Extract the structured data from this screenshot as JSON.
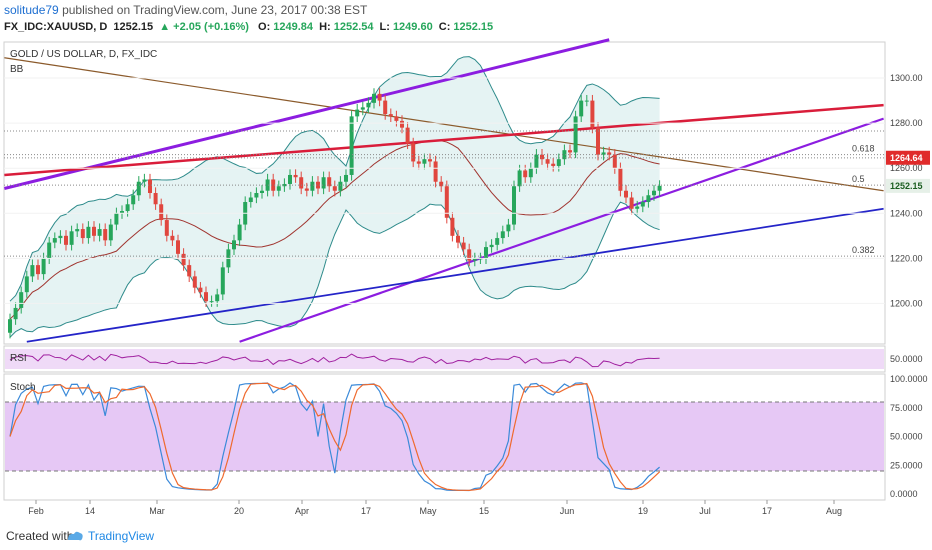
{
  "header": {
    "user": "solitude79",
    "published": "published on TradingView.com, June 23, 2017 00:38 EST",
    "symbol": "FX_IDC:XAUUSD, D",
    "last": "1252.15",
    "change": "+2.05 (+0.16%)",
    "open_label": "O:",
    "open": "1249.84",
    "high_label": "H:",
    "high": "1252.54",
    "low_label": "L:",
    "low": "1249.60",
    "close_label": "C:",
    "close": "1252.15"
  },
  "chart_title": "GOLD / US DOLLAR, D, FX_IDC",
  "indicators": {
    "bb": "BB",
    "rsi": "RSI",
    "stoch": "Stoch"
  },
  "fib": {
    "f618": "0.618",
    "f5": "0.5",
    "f382": "0.382"
  },
  "price_axis": [
    "1300.00",
    "1280.00",
    "1260.00",
    "1240.00",
    "1220.00",
    "1200.00"
  ],
  "price_ticks": [
    1300,
    1280,
    1260,
    1240,
    1220,
    1200
  ],
  "markers": {
    "red_pill": "1264.64",
    "last_pill": "1252.15",
    "red_pill_value": 1264.64,
    "last_pill_value": 1252.15
  },
  "rsi_axis": "50.0000",
  "stoch_axis": [
    "100.0000",
    "75.0000",
    "50.0000",
    "25.0000",
    "0.0000"
  ],
  "time_axis": [
    "Feb",
    "14",
    "Mar",
    "20",
    "Apr",
    "17",
    "May",
    "15",
    "Jun",
    "19",
    "Jul",
    "17",
    "Aug"
  ],
  "footer": {
    "created": "Created with",
    "brand": "TradingView"
  },
  "colors": {
    "up": "#26a65b",
    "down": "#e0463e",
    "purple": "#8c1de0",
    "red_line": "#d91d3a",
    "brown": "#8b5a2b",
    "blue": "#2424c8",
    "bb_line": "#2e8b8b",
    "bb_fill": "#dff0f0",
    "ma": "#a0342f",
    "stoch_fill": "#e6c8f5",
    "rsi_fill": "#efdaf7",
    "stoch_k": "#3b8ad9",
    "stoch_d": "#ef6a2e",
    "rsi_line": "#a020a0"
  },
  "chart_data": {
    "type": "candlestick",
    "title": "GOLD / US DOLLAR, D, FX_IDC",
    "ylim": [
      1182,
      1316
    ],
    "closes": [
      1193,
      1198,
      1205,
      1212,
      1217,
      1213,
      1220,
      1227,
      1229,
      1230,
      1226,
      1232,
      1233,
      1229,
      1234,
      1230,
      1233,
      1228,
      1235,
      1240,
      1241,
      1244,
      1248,
      1254,
      1255,
      1249,
      1244,
      1237,
      1230,
      1228,
      1222,
      1217,
      1212,
      1207,
      1205,
      1201,
      1201,
      1204,
      1216,
      1224,
      1228,
      1235,
      1245,
      1247,
      1249,
      1250,
      1255,
      1250,
      1252,
      1253,
      1257,
      1256,
      1251,
      1250,
      1254,
      1251,
      1256,
      1252,
      1250,
      1254,
      1257,
      1283,
      1286,
      1287,
      1289,
      1293,
      1290,
      1284,
      1283,
      1281,
      1278,
      1271,
      1263,
      1262,
      1264,
      1263,
      1254,
      1252,
      1238,
      1230,
      1227,
      1224,
      1219,
      1220,
      1220,
      1225,
      1226,
      1229,
      1232,
      1235,
      1252,
      1259,
      1256,
      1260,
      1266,
      1264,
      1262,
      1261,
      1264,
      1268,
      1267,
      1283,
      1290,
      1290,
      1278,
      1266,
      1267,
      1266,
      1260,
      1250,
      1247,
      1242,
      1243,
      1245,
      1248,
      1250,
      1252.15
    ]
  }
}
